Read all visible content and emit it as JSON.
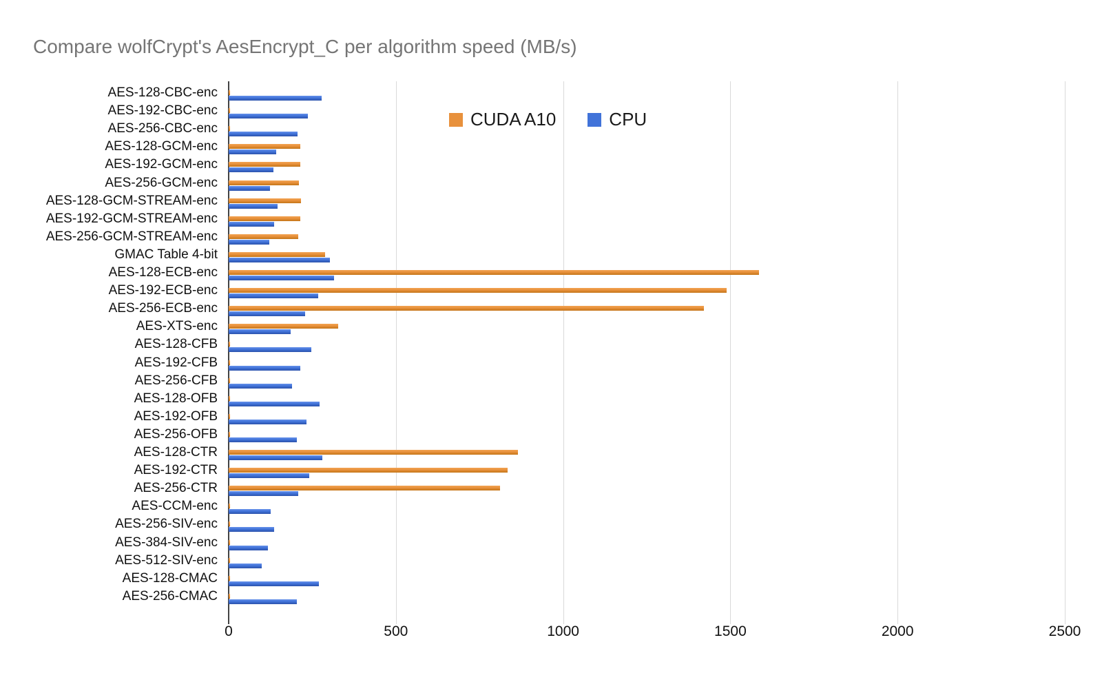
{
  "title": "Compare wolfCrypt's AesEncrypt_C per algorithm speed (MB/s)",
  "colors": {
    "cuda_bar": "#e8913c",
    "cpu_bar": "#4173d9",
    "title_text": "#757575",
    "axis_line": "#424242",
    "gridline": "#d9d9d9",
    "label_text": "#111111"
  },
  "chart_data": {
    "type": "bar",
    "orientation": "horizontal",
    "title": "Compare wolfCrypt's AesEncrypt_C per algorithm speed (MB/s)",
    "xlabel": "",
    "ylabel": "",
    "xlim": [
      0,
      2500
    ],
    "x_ticks": [
      0,
      500,
      1000,
      1500,
      2000,
      2500
    ],
    "grid": true,
    "legend_position": "top-center",
    "categories": [
      "AES-128-CBC-enc",
      "AES-192-CBC-enc",
      "AES-256-CBC-enc",
      "AES-128-GCM-enc",
      "AES-192-GCM-enc",
      "AES-256-GCM-enc",
      "AES-128-GCM-STREAM-enc",
      "AES-192-GCM-STREAM-enc",
      "AES-256-GCM-STREAM-enc",
      "GMAC Table 4-bit",
      "AES-128-ECB-enc",
      "AES-192-ECB-enc",
      "AES-256-ECB-enc",
      "AES-XTS-enc",
      "AES-128-CFB",
      "AES-192-CFB",
      "AES-256-CFB",
      "AES-128-OFB",
      "AES-192-OFB",
      "AES-256-OFB",
      "AES-128-CTR",
      "AES-192-CTR",
      "AES-256-CTR",
      "AES-CCM-enc",
      "AES-256-SIV-enc",
      "AES-384-SIV-enc",
      "AES-512-SIV-enc",
      "AES-128-CMAC",
      "AES-256-CMAC"
    ],
    "series": [
      {
        "name": "CUDA A10",
        "color": "#e8913c",
        "values": [
          5,
          5,
          5,
          215,
          215,
          210,
          216,
          214,
          209,
          288,
          1585,
          1488,
          1420,
          328,
          5,
          5,
          5,
          5,
          5,
          5,
          864,
          833,
          811,
          5,
          5,
          5,
          5,
          5,
          5
        ]
      },
      {
        "name": "CPU",
        "color": "#4173d9",
        "values": [
          277,
          237,
          205,
          143,
          134,
          124,
          147,
          135,
          122,
          303,
          315,
          268,
          229,
          186,
          247,
          215,
          190,
          272,
          233,
          204,
          280,
          241,
          208,
          126,
          136,
          118,
          99,
          270,
          204
        ]
      }
    ]
  }
}
